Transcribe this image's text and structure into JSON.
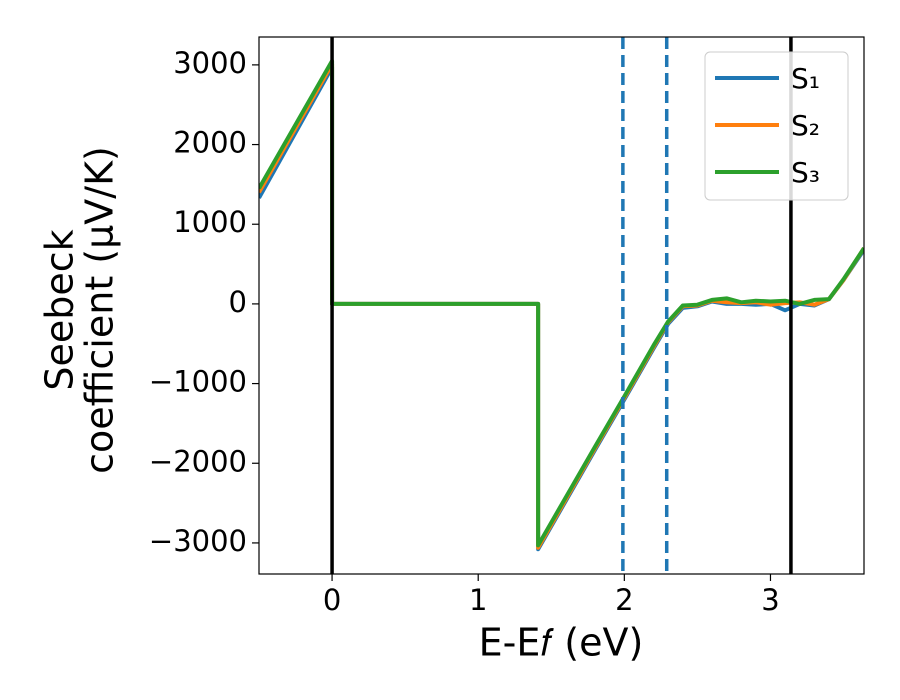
{
  "chart_data": {
    "type": "line",
    "x_label": "E-E𝑓 (eV)",
    "y_label_lines": [
      "Seebeck",
      "coefficient  (μV/K)"
    ],
    "x": [
      -0.5,
      0.0,
      0.0,
      0.5,
      1.0,
      1.41,
      1.41,
      1.8,
      2.0,
      2.2,
      2.3,
      2.4,
      2.5,
      2.6,
      2.7,
      2.8,
      2.9,
      3.0,
      3.1,
      3.2,
      3.3,
      3.4,
      3.5,
      3.64
    ],
    "series": [
      {
        "name": "S₁",
        "color": "#1f77b4",
        "values": [
          1330,
          2970,
          0,
          0,
          0,
          0,
          -3080,
          -1830,
          -1200,
          -560,
          -250,
          -50,
          -30,
          30,
          0,
          0,
          -10,
          0,
          -80,
          0,
          -20,
          60,
          300,
          680
        ]
      },
      {
        "name": "S₂",
        "color": "#ff7f0e",
        "values": [
          1400,
          3010,
          0,
          0,
          0,
          0,
          -3060,
          -1810,
          -1180,
          -540,
          -230,
          -30,
          -20,
          40,
          20,
          10,
          20,
          -10,
          10,
          20,
          -10,
          60,
          300,
          700
        ]
      },
      {
        "name": "S₃",
        "color": "#2ca02c",
        "values": [
          1450,
          3050,
          0,
          0,
          0,
          0,
          -3030,
          -1790,
          -1160,
          -520,
          -220,
          -20,
          -10,
          50,
          70,
          20,
          40,
          30,
          40,
          0,
          50,
          60,
          310,
          700
        ]
      }
    ],
    "vlines": [
      {
        "x": 0,
        "color": "#000000",
        "style": "solid"
      },
      {
        "x": 3.14,
        "color": "#000000",
        "style": "solid"
      },
      {
        "x": 1.99,
        "color": "#1f77b4",
        "style": "dashed"
      },
      {
        "x": 2.29,
        "color": "#1f77b4",
        "style": "dashed"
      }
    ],
    "xlim": [
      -0.5,
      3.64
    ],
    "ylim": [
      -3390,
      3350
    ],
    "xticks": [
      0,
      1,
      2,
      3
    ],
    "yticks": [
      {
        "value": -3000,
        "label": "−3000"
      },
      {
        "value": -2000,
        "label": "−2000"
      },
      {
        "value": -1000,
        "label": "−1000"
      },
      0,
      1000,
      2000,
      3000
    ],
    "legend": "upper right",
    "grid": false
  }
}
